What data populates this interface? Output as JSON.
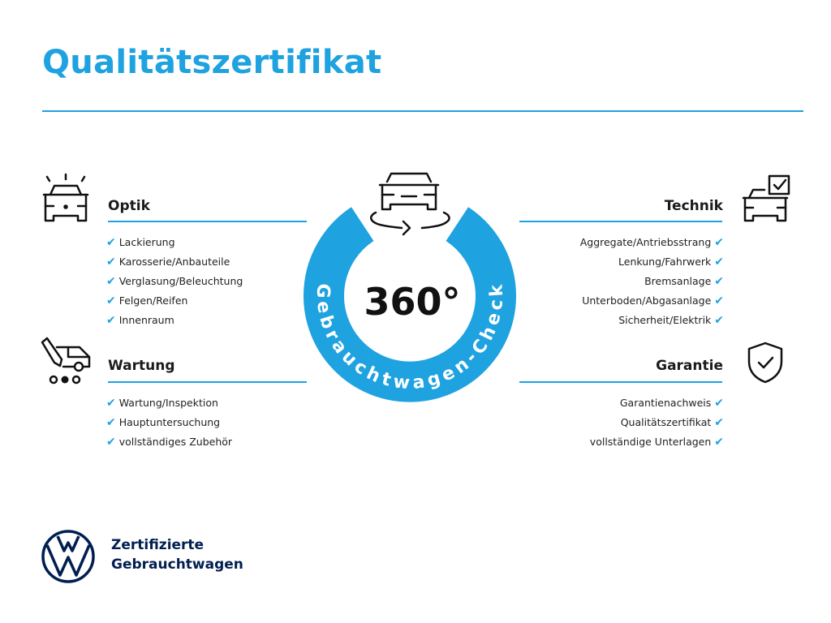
{
  "title": "Qualitätszertifikat",
  "center": {
    "number": "360°",
    "ring_text": "Gebrauchtwagen-Check"
  },
  "sections": {
    "optik": {
      "heading": "Optik",
      "icon": "car-lights-icon",
      "items": [
        "Lackierung",
        "Karosserie/Anbauteile",
        "Verglasung/Beleuchtung",
        "Felgen/Reifen",
        "Innenraum"
      ]
    },
    "wartung": {
      "heading": "Wartung",
      "icon": "car-service-icon",
      "items": [
        "Wartung/Inspektion",
        "Hauptuntersuchung",
        "vollständiges Zubehör"
      ]
    },
    "technik": {
      "heading": "Technik",
      "icon": "car-checklist-icon",
      "items": [
        "Aggregate/Antriebsstrang",
        "Lenkung/Fahrwerk",
        "Bremsanlage",
        "Unterboden/Abgasanlage",
        "Sicherheit/Elektrik"
      ]
    },
    "garantie": {
      "heading": "Garantie",
      "icon": "shield-check-icon",
      "items": [
        "Garantienachweis",
        "Qualitätszertifikat",
        "vollständige Unterlagen"
      ]
    }
  },
  "check_glyph": "✔",
  "brand": {
    "line1": "Zertifizierte",
    "line2": "Gebrauchtwagen",
    "logo": "vw-logo"
  },
  "colors": {
    "accent": "#1ea2e0",
    "brand_navy": "#001e50"
  }
}
